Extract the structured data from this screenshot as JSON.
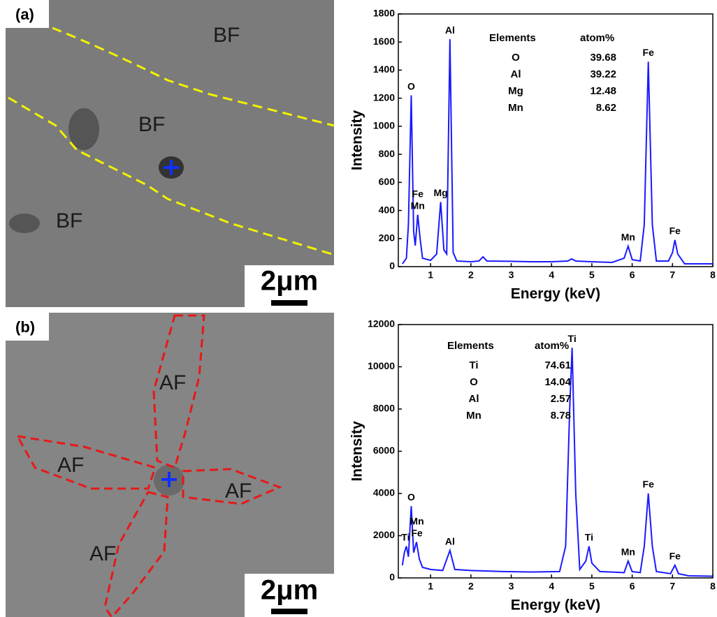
{
  "micrographs": [
    {
      "panel": "(a)",
      "labels": [
        "BF",
        "BF",
        "BF"
      ],
      "scale": "2μm"
    },
    {
      "panel": "(b)",
      "labels": [
        "AF",
        "AF",
        "AF",
        "AF"
      ],
      "scale": "2μm"
    }
  ],
  "chart_data": [
    {
      "type": "line",
      "x_label": "Energy (keV)",
      "y_label": "Intensity",
      "xlim": [
        0.2,
        8
      ],
      "ylim": [
        0,
        1800
      ],
      "xticks": [
        1,
        2,
        3,
        4,
        5,
        6,
        7,
        8
      ],
      "yticks": [
        0,
        200,
        400,
        600,
        800,
        1000,
        1200,
        1400,
        1600,
        1800
      ],
      "series": [
        {
          "color": "#1a1aff",
          "x": [
            0.3,
            0.4,
            0.45,
            0.52,
            0.58,
            0.62,
            0.68,
            0.74,
            0.8,
            1.0,
            1.15,
            1.25,
            1.33,
            1.4,
            1.48,
            1.56,
            1.65,
            2.0,
            2.2,
            2.3,
            2.4,
            3.0,
            3.5,
            4.0,
            4.4,
            4.5,
            4.6,
            5.0,
            5.5,
            5.8,
            5.9,
            6.0,
            6.2,
            6.3,
            6.4,
            6.5,
            6.6,
            6.9,
            7.0,
            7.06,
            7.13,
            7.3,
            8.0
          ],
          "values": [
            20,
            60,
            300,
            1220,
            250,
            150,
            370,
            200,
            60,
            45,
            90,
            460,
            120,
            90,
            1620,
            100,
            40,
            35,
            40,
            70,
            40,
            38,
            35,
            35,
            40,
            55,
            40,
            35,
            30,
            60,
            145,
            50,
            40,
            300,
            1460,
            300,
            40,
            40,
            100,
            190,
            90,
            20,
            20
          ]
        }
      ],
      "annotations": [
        {
          "text": "O",
          "x": 0.52,
          "y": 1220
        },
        {
          "text": "Mn",
          "x": 0.68,
          "y": 370
        },
        {
          "text": "Fe",
          "x": 0.68,
          "y": 370
        },
        {
          "text": "Mg",
          "x": 1.25,
          "y": 460
        },
        {
          "text": "Al",
          "x": 1.48,
          "y": 1620
        },
        {
          "text": "Mn",
          "x": 5.9,
          "y": 145
        },
        {
          "text": "Fe",
          "x": 6.4,
          "y": 1460
        },
        {
          "text": "Fe",
          "x": 7.06,
          "y": 190
        }
      ],
      "table": {
        "header": [
          "Elements",
          "atom%"
        ],
        "rows": [
          [
            "O",
            39.68
          ],
          [
            "Al",
            39.22
          ],
          [
            "Mg",
            12.48
          ],
          [
            "Mn",
            8.62
          ]
        ]
      }
    },
    {
      "type": "line",
      "x_label": "Energy (keV)",
      "y_label": "Intensity",
      "xlim": [
        0.2,
        8
      ],
      "ylim": [
        0,
        12000
      ],
      "xticks": [
        1,
        2,
        3,
        4,
        5,
        6,
        7,
        8
      ],
      "yticks": [
        0,
        2000,
        4000,
        6000,
        8000,
        10000,
        12000
      ],
      "series": [
        {
          "color": "#1a1aff",
          "x": [
            0.3,
            0.35,
            0.4,
            0.45,
            0.52,
            0.58,
            0.65,
            0.72,
            0.8,
            1.0,
            1.3,
            1.48,
            1.6,
            2.0,
            2.8,
            3.5,
            4.2,
            4.35,
            4.45,
            4.51,
            4.6,
            4.7,
            4.85,
            4.93,
            5.0,
            5.2,
            5.8,
            5.9,
            6.0,
            6.2,
            6.3,
            6.4,
            6.5,
            6.6,
            6.95,
            7.06,
            7.15,
            7.4,
            8.0
          ],
          "values": [
            600,
            1200,
            1500,
            1000,
            3400,
            1200,
            1700,
            900,
            500,
            400,
            350,
            1300,
            400,
            350,
            300,
            280,
            300,
            1500,
            8000,
            10900,
            4000,
            400,
            800,
            1500,
            700,
            300,
            250,
            800,
            300,
            250,
            1500,
            4000,
            1500,
            300,
            200,
            600,
            200,
            100,
            80
          ]
        }
      ],
      "annotations": [
        {
          "text": "Ti",
          "x": 0.38,
          "y": 1500
        },
        {
          "text": "O",
          "x": 0.52,
          "y": 3400
        },
        {
          "text": "Fe",
          "x": 0.66,
          "y": 1700
        },
        {
          "text": "Mn",
          "x": 0.66,
          "y": 1700
        },
        {
          "text": "Al",
          "x": 1.48,
          "y": 1300
        },
        {
          "text": "Ti",
          "x": 4.51,
          "y": 10900
        },
        {
          "text": "Ti",
          "x": 4.93,
          "y": 1500
        },
        {
          "text": "Mn",
          "x": 5.9,
          "y": 800
        },
        {
          "text": "Fe",
          "x": 6.4,
          "y": 4000
        },
        {
          "text": "Fe",
          "x": 7.06,
          "y": 600
        }
      ],
      "table": {
        "header": [
          "Elements",
          "atom%"
        ],
        "rows": [
          [
            "Ti",
            74.61
          ],
          [
            "O",
            14.04
          ],
          [
            "Al",
            2.57
          ],
          [
            "Mn",
            8.78
          ]
        ]
      }
    }
  ]
}
